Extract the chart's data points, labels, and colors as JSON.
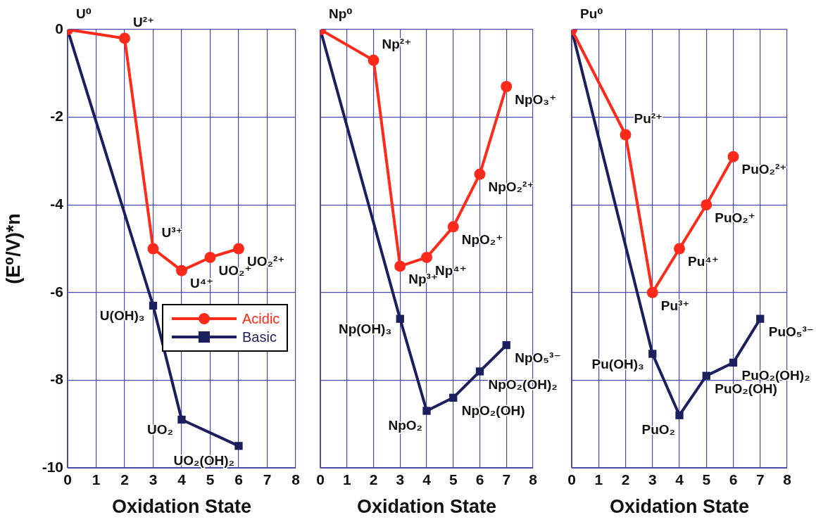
{
  "chart_data": [
    {
      "type": "line",
      "xlabel": "Oxidation State",
      "ylabel": "(E⁰/V)*n",
      "xlim": [
        0,
        8
      ],
      "xticks": [
        0,
        1,
        2,
        3,
        4,
        5,
        6,
        7,
        8
      ],
      "ylim": [
        -10,
        0
      ],
      "yticks": [
        -10,
        -8,
        -6,
        -4,
        -2,
        0
      ],
      "grid": true,
      "legend": "right",
      "line_style": "solid",
      "series": [
        {
          "name": "Acidic",
          "color": "#ff2a1a",
          "marker": "circle",
          "x": [
            0,
            2,
            3,
            4,
            5,
            6
          ],
          "values": [
            0,
            -0.2,
            -5.0,
            -5.5,
            -5.2,
            -5.0
          ]
        },
        {
          "name": "Basic",
          "color": "#1c1f5e",
          "marker": "square",
          "x": [
            0,
            3,
            4,
            6
          ],
          "values": [
            0,
            -6.3,
            -8.9,
            -9.5
          ]
        }
      ],
      "annotations": [
        {
          "text": "U⁰",
          "x": 0,
          "y": 0
        },
        {
          "text": "U²⁺",
          "x": 2,
          "y": -0.2
        },
        {
          "text": "U³⁺",
          "x": 3,
          "y": -5.0
        },
        {
          "text": "U⁴⁺",
          "x": 4,
          "y": -5.5
        },
        {
          "text": "UO₂⁺",
          "x": 5,
          "y": -5.2
        },
        {
          "text": "UO₂²⁺",
          "x": 6,
          "y": -5.0
        },
        {
          "text": "U(OH)₃",
          "x": 3,
          "y": -6.3
        },
        {
          "text": "UO₂",
          "x": 4,
          "y": -8.9
        },
        {
          "text": "UO₂(OH)₂",
          "x": 6,
          "y": -9.5
        }
      ]
    },
    {
      "type": "line",
      "xlabel": "Oxidation State",
      "xlim": [
        0,
        8
      ],
      "xticks": [
        0,
        1,
        2,
        3,
        4,
        5,
        6,
        7,
        8
      ],
      "ylim": [
        -10,
        0
      ],
      "yticks": [
        -10,
        -8,
        -6,
        -4,
        -2,
        0
      ],
      "grid": true,
      "tick_labels": "x",
      "line_style": "solid",
      "series": [
        {
          "color": "#ff2a1a",
          "marker": "circle",
          "x": [
            0,
            2,
            3,
            4,
            5,
            6,
            7
          ],
          "values": [
            0,
            -0.7,
            -5.4,
            -5.2,
            -4.5,
            -3.3,
            -1.3
          ]
        },
        {
          "color": "#1c1f5e",
          "marker": "square",
          "x": [
            0,
            3,
            4,
            5,
            6,
            7
          ],
          "values": [
            0,
            -6.6,
            -8.7,
            -8.4,
            -7.8,
            -7.2
          ]
        }
      ],
      "annotations": [
        {
          "text": "Np⁰",
          "x": 0,
          "y": 0
        },
        {
          "text": "Np²⁺",
          "x": 2,
          "y": -0.7
        },
        {
          "text": "Np³⁺",
          "x": 3,
          "y": -5.4
        },
        {
          "text": "Np⁴⁺",
          "x": 4,
          "y": -5.2
        },
        {
          "text": "NpO₂⁺",
          "x": 5,
          "y": -4.5
        },
        {
          "text": "NpO₂²⁺",
          "x": 6,
          "y": -3.3
        },
        {
          "text": "NpO₃⁺",
          "x": 7,
          "y": -1.3
        },
        {
          "text": "Np(OH)₃",
          "x": 3,
          "y": -6.6
        },
        {
          "text": "NpO₂",
          "x": 4,
          "y": -8.7
        },
        {
          "text": "NpO₂(OH)",
          "x": 5,
          "y": -8.4
        },
        {
          "text": "NpO₂(OH)₂",
          "x": 6,
          "y": -7.8
        },
        {
          "text": "NpO₅³⁻",
          "x": 7,
          "y": -7.2
        }
      ]
    },
    {
      "type": "line",
      "xlabel": "Oxidation State",
      "xlim": [
        0,
        8
      ],
      "xticks": [
        0,
        1,
        2,
        3,
        4,
        5,
        6,
        7,
        8
      ],
      "ylim": [
        -10,
        0
      ],
      "yticks": [
        -10,
        -8,
        -6,
        -4,
        -2,
        0
      ],
      "grid": true,
      "tick_labels": "x",
      "line_style": "solid",
      "series": [
        {
          "color": "#ff2a1a",
          "marker": "circle",
          "x": [
            0,
            2,
            3,
            4,
            5,
            6
          ],
          "values": [
            0,
            -2.4,
            -6.0,
            -5.0,
            -4.0,
            -2.9
          ]
        },
        {
          "color": "#1c1f5e",
          "marker": "square",
          "x": [
            0,
            3,
            4,
            5,
            6,
            7
          ],
          "values": [
            0,
            -7.4,
            -8.8,
            -7.9,
            -7.6,
            -6.6
          ]
        }
      ],
      "annotations": [
        {
          "text": "Pu⁰",
          "x": 0,
          "y": 0
        },
        {
          "text": "Pu²⁺",
          "x": 2,
          "y": -2.4
        },
        {
          "text": "Pu³⁺",
          "x": 3,
          "y": -6.0
        },
        {
          "text": "Pu⁴⁺",
          "x": 4,
          "y": -5.0
        },
        {
          "text": "PuO₂⁺",
          "x": 5,
          "y": -4.0
        },
        {
          "text": "PuO₂²⁺",
          "x": 6,
          "y": -2.9
        },
        {
          "text": "Pu(OH)₃",
          "x": 3,
          "y": -7.4
        },
        {
          "text": "PuO₂",
          "x": 4,
          "y": -8.8
        },
        {
          "text": "PuO₂(OH)",
          "x": 5,
          "y": -7.9
        },
        {
          "text": "PuO₂(OH)₂",
          "x": 6,
          "y": -7.6
        },
        {
          "text": "PuO₅³⁻",
          "x": 7,
          "y": -6.6
        }
      ]
    }
  ]
}
